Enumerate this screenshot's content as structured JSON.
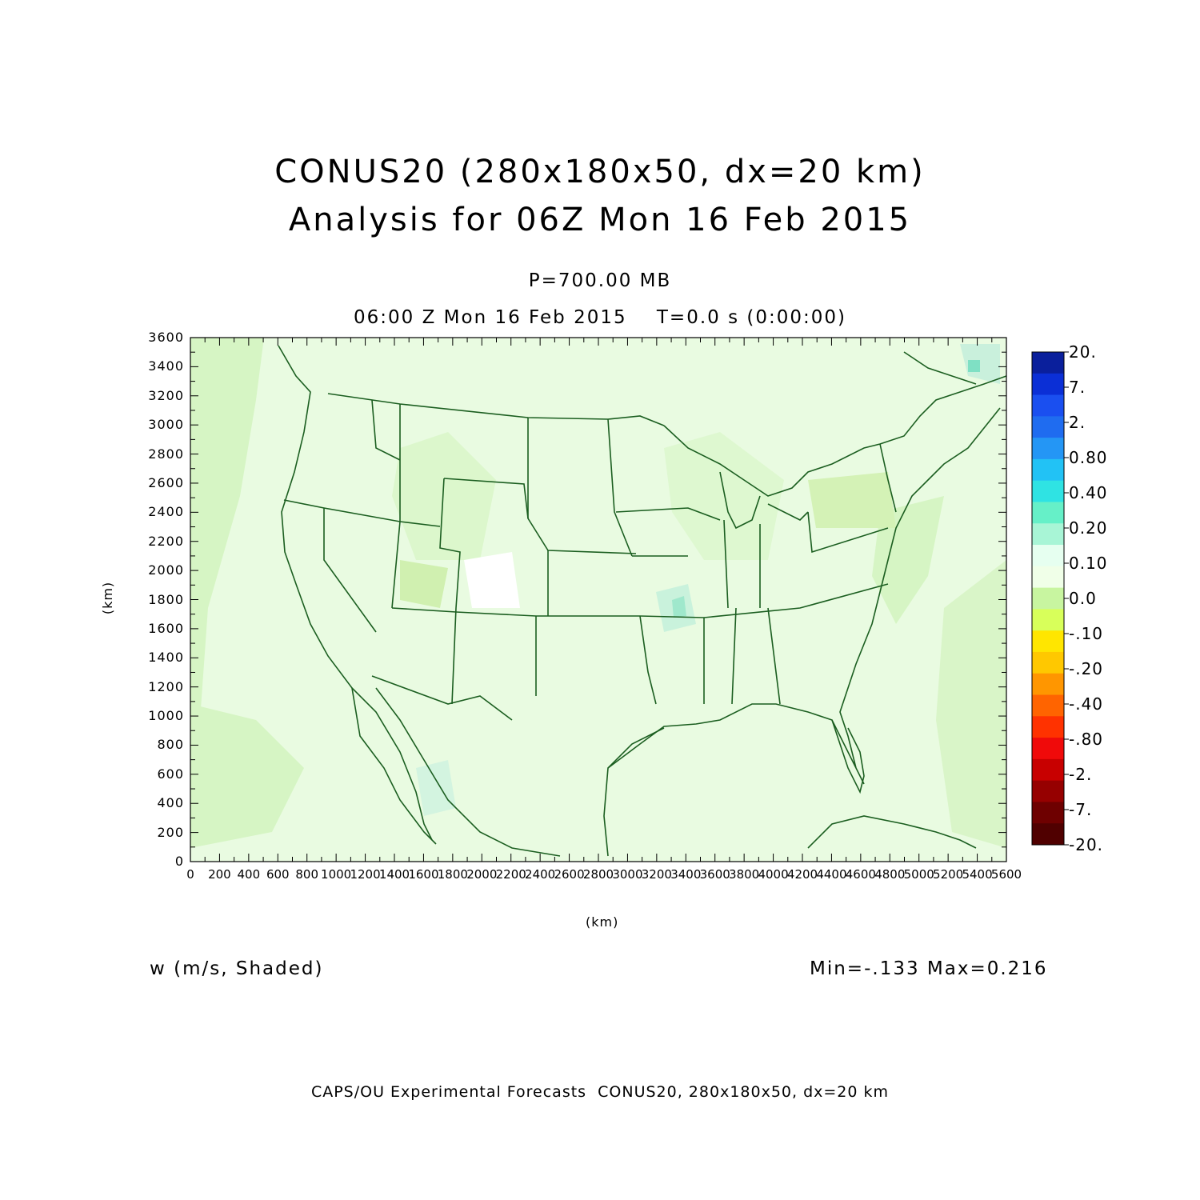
{
  "header": {
    "title_line1": "CONUS20 (280x180x50, dx=20 km)",
    "title_line2": "Analysis for 06Z Mon 16 Feb 2015",
    "level": "P=700.00 MB",
    "valid_time": "06:00 Z Mon 16 Feb 2015    T=0.0 s (0:00:00)"
  },
  "axes": {
    "x_label": "(km)",
    "y_label": "(km)",
    "x_ticks": [
      "0",
      "200",
      "400",
      "600",
      "800",
      "1000",
      "1200",
      "1400",
      "1600",
      "1800",
      "2000",
      "2200",
      "2400",
      "2600",
      "2800",
      "3000",
      "3200",
      "3400",
      "3600",
      "3800",
      "4000",
      "4200",
      "4400",
      "4600",
      "4800",
      "5000",
      "5200",
      "5400",
      "5600"
    ],
    "y_ticks": [
      "0",
      "200",
      "400",
      "600",
      "800",
      "1000",
      "1200",
      "1400",
      "1600",
      "1800",
      "2000",
      "2200",
      "2400",
      "2600",
      "2800",
      "3000",
      "3200",
      "3400",
      "3600"
    ],
    "x_range": [
      0,
      5600
    ],
    "y_range": [
      0,
      3600
    ]
  },
  "field": {
    "label": "w (m/s, Shaded)",
    "minmax": "Min=-.133 Max=0.216"
  },
  "colorbar": {
    "labels": [
      "20.",
      "7.",
      "2.",
      "0.80",
      "0.40",
      "0.20",
      "0.10",
      "0.0",
      "-.10",
      "-.20",
      "-.40",
      "-.80",
      "-2.",
      "-7.",
      "-20."
    ],
    "colors": [
      "#0a1f9c",
      "#0b2fd6",
      "#1a4ff0",
      "#1f6cf0",
      "#2496f5",
      "#22c2f5",
      "#2fe3e3",
      "#66f0c8",
      "#a8f5d6",
      "#e6fff0",
      "#f0ffe8",
      "#c8f5a0",
      "#d8ff5a",
      "#ffe600",
      "#ffc800",
      "#ff9600",
      "#ff6400",
      "#ff3200",
      "#f00a0a",
      "#c80000",
      "#960000",
      "#6e0000",
      "#500000"
    ]
  },
  "footer": "CAPS/OU Experimental Forecasts  CONUS20, 280x180x50, dx=20 km"
}
